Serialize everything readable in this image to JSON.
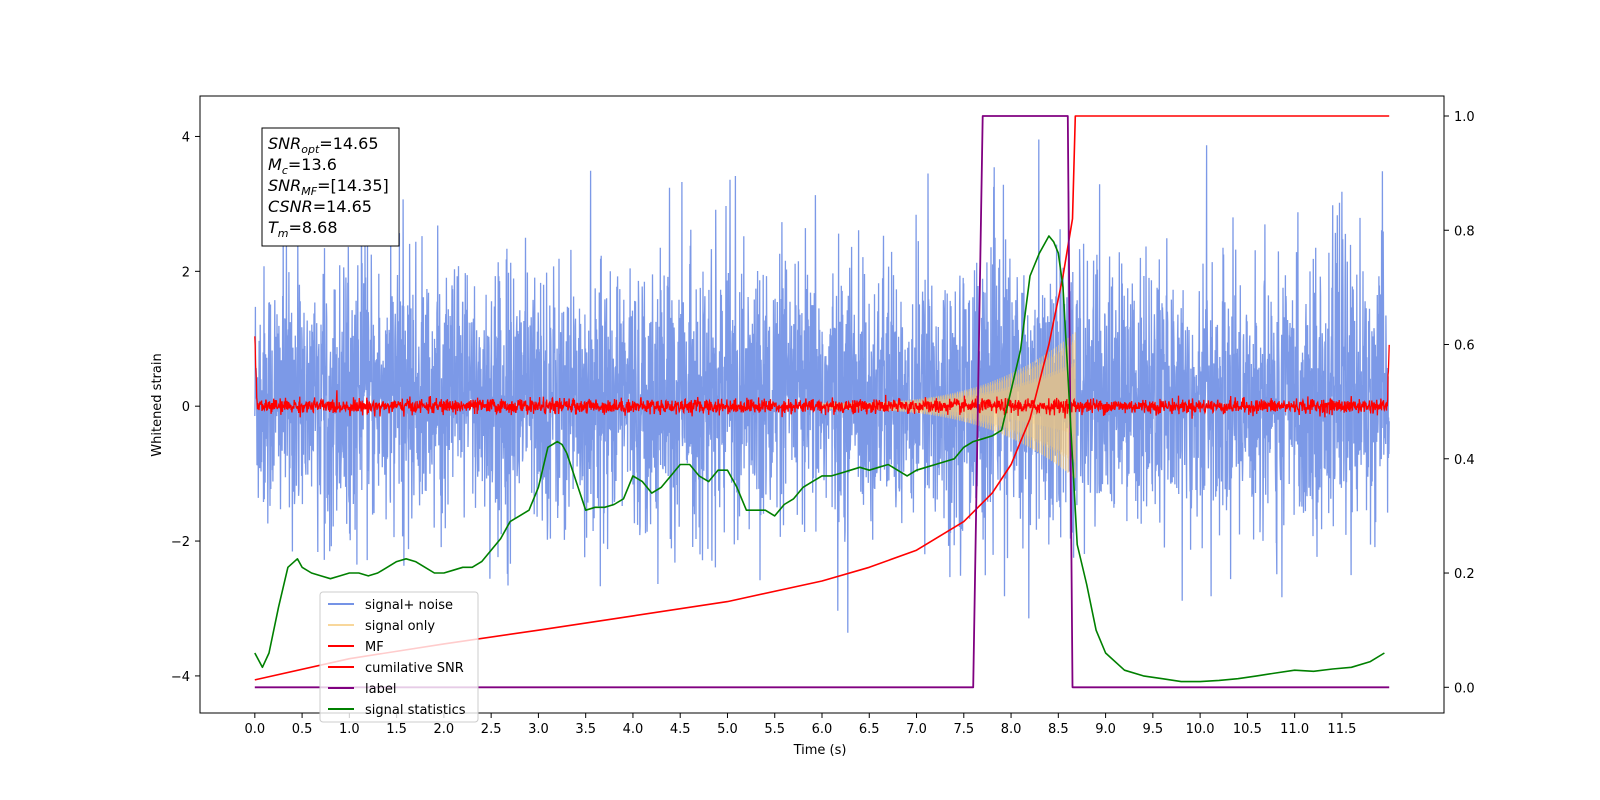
{
  "chart_data": {
    "type": "line",
    "xlabel": "Time (s)",
    "ylabel": "Whitened strain",
    "xlim": [
      -0.58,
      12.58
    ],
    "ylim_left": [
      -4.55,
      4.6
    ],
    "ylim_right": [
      -0.045,
      1.035
    ],
    "x_ticks": [
      "0.0",
      "0.5",
      "1.0",
      "1.5",
      "2.0",
      "2.5",
      "3.0",
      "3.5",
      "4.0",
      "4.5",
      "5.0",
      "5.5",
      "6.0",
      "6.5",
      "7.0",
      "7.5",
      "8.0",
      "8.5",
      "9.0",
      "9.5",
      "10.0",
      "10.5",
      "11.0",
      "11.5"
    ],
    "y_ticks_left": [
      "-4",
      "-2",
      "0",
      "2",
      "4"
    ],
    "y_ticks_right": [
      "0.0",
      "0.2",
      "0.4",
      "0.6",
      "0.8",
      "1.0"
    ],
    "legend_position": "lower-left",
    "annotation": {
      "lines": [
        {
          "base": "SNR",
          "sub": "opt",
          "rest": "=14.65"
        },
        {
          "base": "M",
          "sub": "c",
          "rest": "=13.6"
        },
        {
          "base": "SNR",
          "sub": "MF",
          "rest": "=[14.35]"
        },
        {
          "base": "CSNR",
          "sub": "",
          "rest": "=14.65"
        },
        {
          "base": "T",
          "sub": "m",
          "rest": "=8.68"
        }
      ]
    },
    "series": [
      {
        "name": "signal+ noise",
        "axis": "left",
        "color": "#7593e6",
        "kind": "noise",
        "x_range": [
          0,
          12
        ],
        "envelope_typical": [
          -1.5,
          1.8
        ],
        "envelope_peak": [
          -4.1,
          4.15
        ]
      },
      {
        "name": "signal only",
        "axis": "left",
        "color": "#f5c97a",
        "kind": "chirp",
        "x_range": [
          6.0,
          8.68
        ],
        "amplitude_max": 1.05
      },
      {
        "name": "MF",
        "axis": "left",
        "color": "#ff0000",
        "kind": "noise",
        "x_range": [
          0,
          12
        ],
        "start_value": 1.0,
        "end_value": 0.9,
        "envelope_typical": [
          -0.15,
          0.2
        ]
      },
      {
        "name": "cumilative SNR",
        "axis": "right",
        "color": "#ff0000",
        "kind": "line",
        "x": [
          0.0,
          1.0,
          2.0,
          3.0,
          4.0,
          5.0,
          6.0,
          6.5,
          7.0,
          7.5,
          7.8,
          8.0,
          8.2,
          8.4,
          8.55,
          8.65,
          8.68,
          9.0,
          10.0,
          11.0,
          12.0
        ],
        "y": [
          0.013,
          0.05,
          0.076,
          0.1,
          0.125,
          0.15,
          0.186,
          0.21,
          0.24,
          0.29,
          0.34,
          0.39,
          0.47,
          0.6,
          0.72,
          0.82,
          1.0,
          1.0,
          1.0,
          1.0,
          1.0
        ]
      },
      {
        "name": "label",
        "axis": "right",
        "color": "#800080",
        "kind": "line",
        "x": [
          0.0,
          7.6,
          7.7,
          8.6,
          8.65,
          12.0
        ],
        "y": [
          0.0,
          0.0,
          1.0,
          1.0,
          0.0,
          0.0
        ]
      },
      {
        "name": "signal statistics",
        "axis": "right",
        "color": "#008000",
        "kind": "line",
        "x": [
          0.0,
          0.08,
          0.15,
          0.25,
          0.35,
          0.45,
          0.5,
          0.6,
          0.7,
          0.8,
          0.9,
          1.0,
          1.1,
          1.2,
          1.3,
          1.4,
          1.5,
          1.6,
          1.7,
          1.8,
          1.9,
          2.0,
          2.1,
          2.2,
          2.3,
          2.4,
          2.5,
          2.6,
          2.7,
          2.8,
          2.9,
          3.0,
          3.1,
          3.2,
          3.25,
          3.3,
          3.4,
          3.5,
          3.6,
          3.7,
          3.8,
          3.9,
          4.0,
          4.1,
          4.2,
          4.3,
          4.4,
          4.5,
          4.6,
          4.7,
          4.8,
          4.9,
          5.0,
          5.1,
          5.2,
          5.3,
          5.4,
          5.5,
          5.6,
          5.7,
          5.8,
          5.9,
          6.0,
          6.1,
          6.2,
          6.3,
          6.4,
          6.5,
          6.6,
          6.7,
          6.8,
          6.9,
          7.0,
          7.1,
          7.2,
          7.3,
          7.4,
          7.5,
          7.6,
          7.7,
          7.8,
          7.9,
          8.0,
          8.1,
          8.2,
          8.3,
          8.4,
          8.45,
          8.5,
          8.55,
          8.6,
          8.65,
          8.7,
          8.8,
          8.9,
          9.0,
          9.2,
          9.4,
          9.6,
          9.8,
          10.0,
          10.2,
          10.4,
          10.6,
          10.8,
          11.0,
          11.2,
          11.4,
          11.6,
          11.8,
          11.95
        ],
        "y": [
          0.06,
          0.035,
          0.06,
          0.14,
          0.21,
          0.225,
          0.21,
          0.2,
          0.195,
          0.19,
          0.195,
          0.2,
          0.2,
          0.195,
          0.2,
          0.21,
          0.22,
          0.225,
          0.22,
          0.21,
          0.2,
          0.2,
          0.205,
          0.21,
          0.21,
          0.22,
          0.24,
          0.26,
          0.29,
          0.3,
          0.31,
          0.35,
          0.42,
          0.43,
          0.425,
          0.41,
          0.36,
          0.31,
          0.315,
          0.315,
          0.32,
          0.33,
          0.37,
          0.36,
          0.34,
          0.35,
          0.37,
          0.39,
          0.39,
          0.37,
          0.36,
          0.38,
          0.38,
          0.35,
          0.31,
          0.31,
          0.31,
          0.3,
          0.32,
          0.33,
          0.35,
          0.36,
          0.37,
          0.37,
          0.375,
          0.38,
          0.385,
          0.38,
          0.385,
          0.39,
          0.38,
          0.37,
          0.38,
          0.385,
          0.39,
          0.395,
          0.4,
          0.42,
          0.43,
          0.435,
          0.44,
          0.45,
          0.52,
          0.59,
          0.72,
          0.76,
          0.79,
          0.78,
          0.76,
          0.7,
          0.55,
          0.4,
          0.25,
          0.18,
          0.1,
          0.06,
          0.03,
          0.02,
          0.015,
          0.01,
          0.01,
          0.012,
          0.015,
          0.02,
          0.025,
          0.03,
          0.028,
          0.032,
          0.035,
          0.045,
          0.06
        ]
      }
    ]
  }
}
